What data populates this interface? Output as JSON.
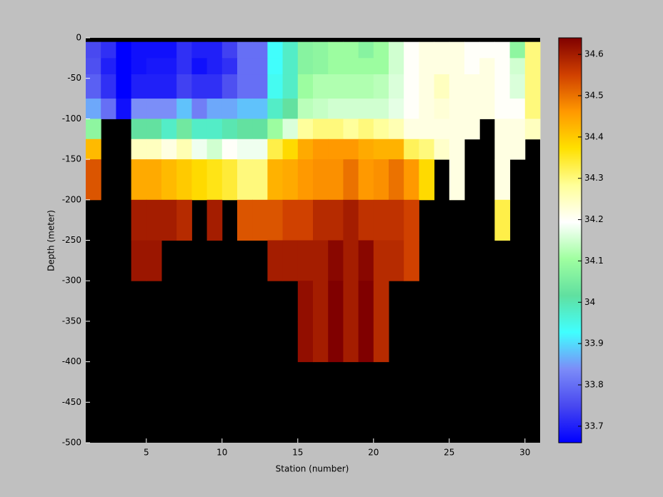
{
  "chart_data": {
    "type": "heatmap",
    "xlabel": "Station (number)",
    "ylabel": "Depth (meter)",
    "x": [
      1,
      2,
      3,
      4,
      5,
      6,
      7,
      8,
      9,
      10,
      11,
      12,
      13,
      14,
      15,
      16,
      17,
      18,
      19,
      20,
      21,
      22,
      23,
      24,
      25,
      26,
      27,
      28,
      29,
      30,
      31
    ],
    "y": [
      0,
      -5,
      -25,
      -45,
      -75,
      -100,
      -125,
      -150,
      -200,
      -250,
      -300,
      -350,
      -400,
      -500
    ],
    "z": [
      [
        null,
        null,
        null,
        null,
        null,
        null,
        null,
        null,
        null,
        null,
        null,
        null,
        null,
        null,
        null,
        null,
        null,
        null,
        null,
        null,
        null,
        null,
        null,
        null,
        null,
        null,
        null,
        null,
        null,
        null
      ],
      [
        33.75,
        33.72,
        33.66,
        33.68,
        33.68,
        33.68,
        33.72,
        33.7,
        33.7,
        33.74,
        33.8,
        33.8,
        33.93,
        33.98,
        34.07,
        34.08,
        34.1,
        34.1,
        34.07,
        34.1,
        34.15,
        34.2,
        34.22,
        34.22,
        34.22,
        34.2,
        34.2,
        34.2,
        34.08,
        34.3
      ],
      [
        33.76,
        33.7,
        33.66,
        33.68,
        33.69,
        33.69,
        33.72,
        33.68,
        33.7,
        33.72,
        33.8,
        33.8,
        33.93,
        33.98,
        34.07,
        34.08,
        34.1,
        34.1,
        34.1,
        34.1,
        34.15,
        34.2,
        34.22,
        34.22,
        34.22,
        34.2,
        34.22,
        34.2,
        34.15,
        34.3
      ],
      [
        33.78,
        33.72,
        33.66,
        33.7,
        33.7,
        33.7,
        33.74,
        33.72,
        33.72,
        33.76,
        33.8,
        33.8,
        33.94,
        33.98,
        34.1,
        34.12,
        34.12,
        34.12,
        34.12,
        34.13,
        34.16,
        34.2,
        34.22,
        34.25,
        34.22,
        34.22,
        34.22,
        34.2,
        34.16,
        34.3
      ],
      [
        33.86,
        33.8,
        33.68,
        33.84,
        33.84,
        33.84,
        33.88,
        33.82,
        33.86,
        33.86,
        33.88,
        33.88,
        33.98,
        34.02,
        34.13,
        34.14,
        34.15,
        34.15,
        34.15,
        34.15,
        34.17,
        34.2,
        34.22,
        34.23,
        34.22,
        34.22,
        34.22,
        34.2,
        34.2,
        34.3
      ],
      [
        34.08,
        null,
        null,
        34.02,
        34.02,
        33.98,
        34.04,
        33.98,
        33.98,
        34.0,
        34.02,
        34.02,
        34.1,
        34.16,
        34.28,
        34.3,
        34.3,
        34.28,
        34.3,
        34.28,
        34.26,
        34.22,
        34.22,
        34.22,
        34.22,
        34.22,
        null,
        34.22,
        34.22,
        34.25
      ],
      [
        34.42,
        null,
        null,
        34.25,
        34.25,
        34.22,
        34.26,
        34.18,
        34.15,
        34.2,
        34.18,
        34.18,
        34.33,
        34.38,
        34.44,
        34.46,
        34.46,
        34.46,
        34.44,
        34.43,
        34.43,
        34.32,
        34.3,
        34.24,
        34.22,
        null,
        null,
        34.22,
        34.22,
        null
      ],
      [
        34.53,
        null,
        null,
        34.44,
        34.44,
        34.42,
        34.4,
        34.38,
        34.36,
        34.34,
        34.3,
        34.3,
        34.43,
        34.44,
        34.46,
        34.47,
        34.47,
        34.5,
        34.46,
        34.47,
        34.5,
        34.46,
        34.38,
        null,
        34.22,
        null,
        null,
        34.22,
        null,
        null
      ],
      [
        null,
        null,
        null,
        34.6,
        34.6,
        34.6,
        34.58,
        null,
        34.6,
        null,
        34.53,
        34.53,
        34.53,
        34.55,
        34.55,
        34.58,
        34.58,
        34.6,
        34.57,
        34.57,
        34.57,
        34.55,
        null,
        null,
        null,
        null,
        null,
        34.33,
        null,
        null
      ],
      [
        null,
        null,
        null,
        34.61,
        34.61,
        null,
        null,
        null,
        null,
        null,
        null,
        null,
        34.6,
        34.6,
        34.6,
        34.6,
        34.63,
        34.6,
        34.63,
        34.58,
        34.58,
        34.55,
        null,
        null,
        null,
        null,
        null,
        null,
        null,
        null
      ],
      [
        null,
        null,
        null,
        null,
        null,
        null,
        null,
        null,
        null,
        null,
        null,
        null,
        null,
        null,
        34.62,
        34.6,
        34.64,
        34.6,
        34.64,
        34.58,
        null,
        null,
        null,
        null,
        null,
        null,
        null,
        null,
        null,
        null
      ],
      [
        null,
        null,
        null,
        null,
        null,
        null,
        null,
        null,
        null,
        null,
        null,
        null,
        null,
        null,
        34.62,
        34.6,
        34.64,
        34.6,
        34.64,
        34.58,
        null,
        null,
        null,
        null,
        null,
        null,
        null,
        null,
        null,
        null
      ],
      [
        null,
        null,
        null,
        null,
        null,
        null,
        null,
        null,
        null,
        null,
        null,
        null,
        null,
        null,
        null,
        null,
        null,
        null,
        null,
        null,
        null,
        null,
        null,
        null,
        null,
        null,
        null,
        null,
        null,
        null
      ]
    ],
    "xlim": [
      1,
      31
    ],
    "xticks": [
      5,
      10,
      15,
      20,
      25,
      30
    ],
    "ylim": [
      -500,
      0
    ],
    "yticks": [
      0,
      -50,
      -100,
      -150,
      -200,
      -250,
      -300,
      -350,
      -400,
      -450,
      -500
    ],
    "clim": [
      33.66,
      34.64
    ],
    "cticks": [
      33.7,
      33.8,
      33.9,
      34,
      34.1,
      34.2,
      34.3,
      34.4,
      34.5,
      34.6
    ],
    "colormap": [
      "#0000ff",
      "#4848f0",
      "#7c8cf8",
      "#40ffff",
      "#60e0a0",
      "#a0ffa0",
      "#ffffff",
      "#ffff98",
      "#ffe000",
      "#ff9800",
      "#d04000",
      "#800000"
    ],
    "background": "#000000"
  }
}
